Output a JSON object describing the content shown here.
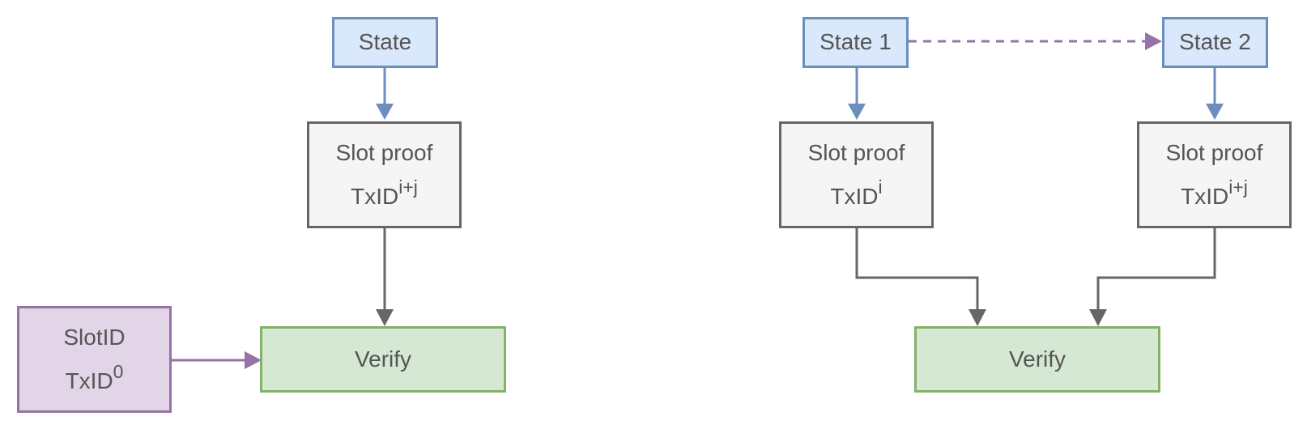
{
  "colors": {
    "blue_fill": "#dae8fc",
    "blue_stroke": "#6c8ebf",
    "gray_fill": "#f5f5f5",
    "gray_stroke": "#666666",
    "green_fill": "#d5e8d4",
    "green_stroke": "#82b366",
    "purple_fill": "#e1d5e7",
    "purple_stroke": "#9673a6"
  },
  "left": {
    "state": "State",
    "slot_proof": {
      "title": "Slot proof",
      "txid": "TxID",
      "sup": "i+j"
    },
    "verify": "Verify",
    "slot_id": {
      "title": "SlotID",
      "txid": "TxID",
      "sup": "0"
    }
  },
  "right": {
    "state1": "State 1",
    "state2": "State 2",
    "slot_proof_1": {
      "title": "Slot proof",
      "txid": "TxID",
      "sup": "i"
    },
    "slot_proof_2": {
      "title": "Slot proof",
      "txid": "TxID",
      "sup": "i+j"
    },
    "verify": "Verify"
  }
}
